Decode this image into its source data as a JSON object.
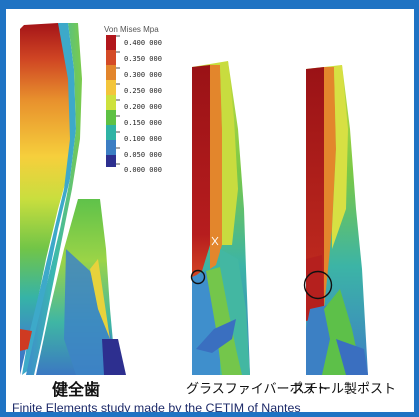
{
  "legend": {
    "title": "Von Mises Mpa",
    "ticks": [
      "0.400 000",
      "0.350 000",
      "0.300 000",
      "0.250 000",
      "0.200 000",
      "0.150 000",
      "0.100 000",
      "0.050 000",
      "0.000 000"
    ],
    "colors": [
      "#b2171c",
      "#d44a26",
      "#e2852b",
      "#f3c53b",
      "#cde13d",
      "#5ec144",
      "#2fb3a5",
      "#3c7ec3",
      "#2d2f8f"
    ]
  },
  "labels": {
    "healthy": "健全歯",
    "fiber_post": "グラスファイバーポスト",
    "steel_post": "スチール製ポスト"
  },
  "caption": "Finite Elements study made by the CETIM of Nantes"
}
